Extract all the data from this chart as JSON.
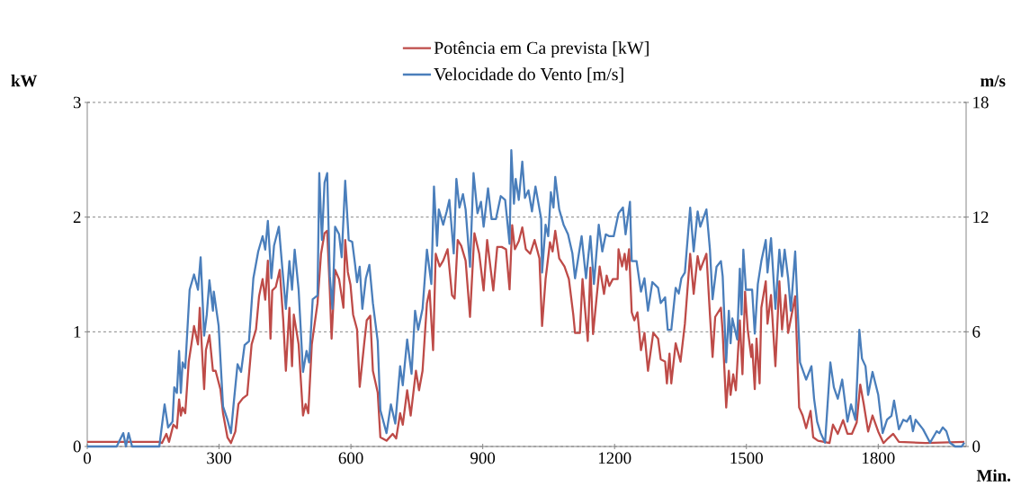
{
  "chart_data": {
    "type": "line",
    "xlabel": "Min.",
    "ylabel": "kW",
    "y2label": "m/s",
    "xlim": [
      0,
      2000
    ],
    "xticks": [
      0,
      300,
      600,
      900,
      1200,
      1500,
      1800
    ],
    "ylim": [
      0,
      3
    ],
    "yticks": [
      0,
      1,
      2,
      3
    ],
    "y2lim": [
      0,
      18
    ],
    "y2ticks": [
      0,
      6,
      12,
      18
    ],
    "grid": "y",
    "legend": "top",
    "series": [
      {
        "name": "Potência em Ca prevista [kW]",
        "color": "#be4b48",
        "axis": "y",
        "x": [
          0,
          164,
          170,
          180,
          186,
          196,
          204,
          209,
          213,
          217,
          223,
          231,
          237,
          243,
          252,
          256,
          260,
          266,
          270,
          278,
          286,
          292,
          303,
          309,
          319,
          327,
          337,
          344,
          354,
          364,
          374,
          384,
          391,
          399,
          405,
          411,
          417,
          421,
          429,
          438,
          446,
          452,
          460,
          466,
          470,
          481,
          491,
          497,
          503,
          511,
          524,
          532,
          540,
          546,
          552,
          556,
          564,
          573,
          583,
          587,
          593,
          599,
          605,
          614,
          620,
          630,
          636,
          644,
          650,
          661,
          667,
          681,
          695,
          703,
          712,
          718,
          728,
          736,
          748,
          755,
          763,
          773,
          779,
          787,
          793,
          802,
          810,
          820,
          830,
          836,
          843,
          851,
          861,
          871,
          881,
          892,
          902,
          910,
          924,
          933,
          943,
          953,
          961,
          967,
          973,
          982,
          990,
          998,
          1008,
          1018,
          1029,
          1035,
          1043,
          1053,
          1059,
          1065,
          1074,
          1086,
          1096,
          1106,
          1110,
          1121,
          1127,
          1139,
          1145,
          1151,
          1166,
          1176,
          1182,
          1188,
          1196,
          1207,
          1209,
          1217,
          1223,
          1227,
          1233,
          1239,
          1245,
          1252,
          1260,
          1268,
          1276,
          1288,
          1299,
          1305,
          1315,
          1319,
          1325,
          1329,
          1339,
          1350,
          1360,
          1372,
          1380,
          1389,
          1395,
          1409,
          1417,
          1423,
          1429,
          1442,
          1446,
          1454,
          1460,
          1464,
          1470,
          1476,
          1485,
          1491,
          1497,
          1503,
          1511,
          1513,
          1519,
          1523,
          1530,
          1534,
          1544,
          1548,
          1556,
          1566,
          1575,
          1581,
          1589,
          1595,
          1603,
          1611,
          1620,
          1628,
          1636,
          1646,
          1652,
          1663,
          1677,
          1689,
          1697,
          1708,
          1720,
          1730,
          1740,
          1751,
          1759,
          1767,
          1777,
          1787,
          1800,
          1812,
          1822,
          1834,
          1847,
          1908,
          1996
        ],
        "values": [
          0.04,
          0.04,
          0.03,
          0.11,
          0.04,
          0.19,
          0.16,
          0.41,
          0.27,
          0.34,
          0.29,
          0.74,
          0.89,
          1.05,
          0.89,
          1.21,
          0.92,
          0.5,
          0.84,
          0.97,
          0.66,
          0.66,
          0.5,
          0.29,
          0.08,
          0.03,
          0.13,
          0.37,
          0.42,
          0.45,
          0.89,
          1.02,
          1.31,
          1.46,
          1.28,
          1.62,
          0.94,
          1.36,
          1.39,
          1.54,
          1.1,
          0.66,
          1.21,
          0.7,
          1.15,
          0.89,
          0.27,
          0.37,
          0.29,
          0.89,
          1.25,
          1.68,
          1.86,
          1.88,
          1.36,
          0.94,
          1.54,
          1.46,
          1.21,
          1.8,
          1.52,
          1.41,
          1.15,
          1.02,
          0.52,
          0.89,
          1.1,
          1.14,
          0.66,
          0.47,
          0.08,
          0.05,
          0.11,
          0.07,
          0.29,
          0.19,
          0.49,
          0.27,
          0.66,
          0.49,
          0.66,
          1.25,
          1.36,
          0.84,
          1.68,
          1.57,
          1.62,
          1.72,
          1.32,
          1.29,
          1.8,
          1.75,
          1.62,
          1.13,
          1.86,
          1.68,
          1.36,
          1.8,
          1.36,
          1.74,
          1.74,
          1.72,
          1.37,
          1.93,
          1.72,
          1.79,
          1.91,
          1.72,
          1.68,
          1.8,
          1.64,
          1.05,
          1.46,
          1.78,
          1.7,
          1.88,
          1.64,
          1.57,
          1.46,
          1.15,
          0.99,
          0.99,
          1.46,
          0.92,
          1.56,
          0.98,
          1.57,
          1.33,
          1.49,
          1.4,
          1.46,
          1.46,
          1.72,
          1.57,
          1.68,
          1.54,
          1.72,
          1.17,
          1.1,
          1.17,
          0.84,
          0.99,
          0.66,
          0.99,
          0.94,
          0.76,
          0.74,
          0.55,
          0.81,
          0.55,
          0.9,
          0.74,
          1.07,
          1.68,
          1.33,
          1.66,
          1.54,
          1.68,
          1.15,
          0.78,
          1.13,
          1.21,
          0.99,
          0.34,
          0.66,
          0.45,
          0.63,
          0.49,
          1.1,
          0.63,
          1.35,
          1.02,
          0.78,
          0.89,
          0.5,
          0.94,
          0.55,
          1.21,
          1.44,
          1.07,
          1.32,
          0.7,
          1.44,
          1.02,
          1.32,
          0.99,
          1.15,
          1.31,
          0.34,
          0.27,
          0.16,
          0.31,
          0.08,
          0.05,
          0.04,
          0.03,
          0.19,
          0.11,
          0.23,
          0.11,
          0.11,
          0.21,
          0.54,
          0.37,
          0.13,
          0.27,
          0.13,
          0.03,
          0.07,
          0.11,
          0.04,
          0.03,
          0.04
        ]
      },
      {
        "name": "Velocidade do Vento [m/s]",
        "color": "#4a7ebb",
        "axis": "y2",
        "x": [
          0,
          67,
          82,
          88,
          94,
          102,
          164,
          176,
          184,
          194,
          198,
          204,
          209,
          213,
          217,
          223,
          233,
          243,
          252,
          258,
          266,
          272,
          278,
          286,
          288,
          299,
          309,
          319,
          327,
          333,
          342,
          350,
          358,
          368,
          378,
          389,
          399,
          405,
          411,
          419,
          425,
          436,
          444,
          452,
          460,
          466,
          472,
          481,
          491,
          499,
          505,
          513,
          524,
          528,
          534,
          540,
          546,
          552,
          558,
          564,
          573,
          579,
          587,
          595,
          603,
          609,
          614,
          620,
          626,
          634,
          642,
          650,
          661,
          667,
          681,
          691,
          701,
          712,
          718,
          728,
          738,
          746,
          753,
          763,
          773,
          783,
          789,
          796,
          800,
          810,
          818,
          824,
          834,
          840,
          847,
          855,
          861,
          871,
          879,
          888,
          896,
          902,
          912,
          920,
          930,
          941,
          951,
          961,
          965,
          971,
          975,
          982,
          990,
          996,
          1004,
          1012,
          1020,
          1033,
          1035,
          1043,
          1049,
          1055,
          1061,
          1065,
          1074,
          1084,
          1094,
          1104,
          1110,
          1125,
          1135,
          1145,
          1153,
          1164,
          1172,
          1180,
          1188,
          1198,
          1209,
          1219,
          1225,
          1235,
          1239,
          1250,
          1260,
          1268,
          1276,
          1286,
          1299,
          1305,
          1315,
          1321,
          1329,
          1339,
          1346,
          1352,
          1360,
          1372,
          1380,
          1389,
          1395,
          1409,
          1417,
          1423,
          1432,
          1442,
          1446,
          1454,
          1460,
          1464,
          1468,
          1479,
          1485,
          1489,
          1493,
          1499,
          1513,
          1519,
          1526,
          1534,
          1544,
          1548,
          1556,
          1566,
          1575,
          1581,
          1587,
          1595,
          1601,
          1611,
          1622,
          1636,
          1648,
          1654,
          1661,
          1669,
          1679,
          1691,
          1699,
          1708,
          1718,
          1730,
          1738,
          1748,
          1757,
          1763,
          1771,
          1777,
          1787,
          1800,
          1810,
          1820,
          1830,
          1836,
          1847,
          1857,
          1865,
          1873,
          1879,
          1885,
          1902,
          1918,
          1933,
          1939,
          1947,
          1955,
          1963,
          1975,
          1990,
          1996
        ],
        "values": [
          0,
          0,
          0.7,
          0,
          0.7,
          0,
          0,
          2.2,
          1.0,
          1.3,
          3.1,
          2.8,
          5.0,
          2.8,
          4.4,
          4.1,
          8.2,
          9.0,
          8.2,
          9.9,
          5.8,
          6.9,
          8.7,
          7.1,
          8.1,
          6.3,
          2.1,
          1.4,
          0.7,
          2.2,
          4.3,
          3.9,
          5.3,
          5.5,
          8.8,
          10.2,
          11.0,
          10.3,
          11.8,
          8.8,
          10.5,
          11.5,
          9.3,
          7.2,
          9.7,
          8.2,
          10.3,
          8.2,
          3.9,
          5.0,
          4.4,
          7.7,
          7.9,
          14.3,
          10.8,
          13.8,
          14.3,
          8.9,
          7.2,
          11.5,
          11.1,
          9.9,
          13.9,
          10.8,
          10.7,
          9.6,
          8.6,
          9.4,
          7.2,
          8.8,
          9.5,
          7.5,
          5.5,
          1.9,
          0.7,
          2.2,
          1.2,
          4.2,
          3.2,
          5.6,
          3.8,
          7.1,
          6.1,
          7.2,
          10.3,
          8.5,
          13.6,
          10.5,
          12.4,
          11.6,
          12.3,
          12.9,
          10.1,
          14.0,
          12.5,
          13.2,
          12.4,
          9.4,
          14.3,
          12.2,
          12.8,
          11.5,
          13.5,
          11.9,
          11.9,
          13.1,
          12.9,
          10.6,
          15.5,
          12.7,
          14.0,
          12.9,
          14.9,
          13.0,
          13.4,
          12.3,
          13.6,
          11.9,
          9.1,
          11.6,
          11.0,
          13.3,
          12.5,
          14.1,
          12.4,
          11.6,
          11.1,
          10.1,
          8.8,
          11.0,
          8.8,
          11.0,
          8.5,
          11.6,
          10.2,
          11.1,
          11.0,
          11.0,
          12.2,
          12.5,
          11.1,
          12.8,
          9.7,
          9.7,
          8.1,
          8.8,
          7.1,
          8.6,
          8.3,
          7.5,
          7.8,
          6.1,
          6.1,
          8.3,
          8.0,
          8.8,
          9.1,
          12.5,
          10.2,
          12.3,
          11.5,
          12.4,
          10.3,
          7.7,
          9.4,
          9.7,
          8.9,
          4.4,
          7.1,
          5.4,
          6.7,
          5.6,
          9.3,
          6.9,
          10.3,
          8.2,
          8.2,
          5.9,
          8.5,
          9.7,
          10.8,
          9.1,
          10.9,
          7.2,
          10.3,
          8.9,
          10.3,
          8.8,
          7.1,
          10.2,
          4.4,
          3.5,
          4.2,
          2.5,
          1.3,
          0.7,
          0.2,
          4.4,
          3.1,
          2.5,
          3.5,
          1.3,
          2.2,
          1.4,
          6.1,
          4.6,
          4.2,
          2.7,
          3.9,
          2.7,
          0.7,
          1.4,
          1.6,
          2.4,
          0.9,
          1.4,
          1.3,
          1.6,
          0.8,
          1.4,
          0.9,
          0.2,
          0.8,
          0.7,
          1.0,
          0.8,
          0.2,
          0,
          0,
          0.2
        ]
      }
    ]
  }
}
